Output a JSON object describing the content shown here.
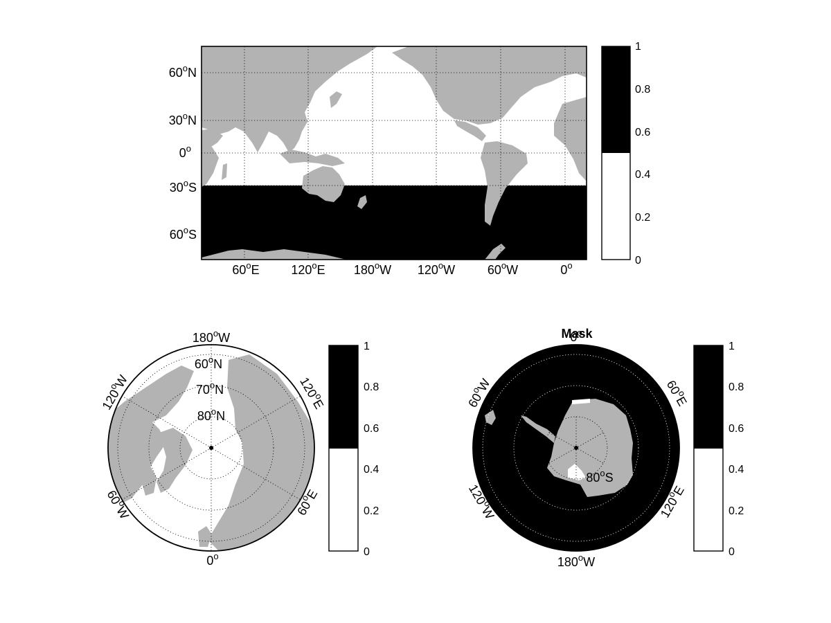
{
  "colors": {
    "land": "#b3b3b3",
    "mask_on": "#000000",
    "mask_off": "#ffffff",
    "axis": "#000000",
    "grid": "#000000"
  },
  "chart_data": [
    {
      "type": "heatmap",
      "panel": "map-global",
      "projection": "equirectangular",
      "lon_range": [
        15,
        195
      ],
      "lat_range": [
        -80,
        80
      ],
      "mask_rule": "1 where latitude < 30S, 0 elsewhere, land shown grey",
      "mask_threshold_lat": -30,
      "x_ticks": [
        {
          "value": 60,
          "deg": "60",
          "hem": "E"
        },
        {
          "value": 120,
          "deg": "120",
          "hem": "E"
        },
        {
          "value": 180,
          "deg": "180",
          "hem": "W"
        },
        {
          "value": 240,
          "deg": "120",
          "hem": "W"
        },
        {
          "value": 300,
          "deg": "60",
          "hem": "W"
        },
        {
          "value": 360,
          "deg": "0",
          "hem": ""
        }
      ],
      "y_ticks": [
        {
          "value": 60,
          "deg": "60",
          "hem": "N"
        },
        {
          "value": 30,
          "deg": "30",
          "hem": "N"
        },
        {
          "value": 0,
          "deg": "0",
          "hem": ""
        },
        {
          "value": -30,
          "deg": "30",
          "hem": "S"
        },
        {
          "value": -60,
          "deg": "60",
          "hem": "S"
        }
      ],
      "grid": "dotted",
      "colorbar": {
        "ticks": [
          "0",
          "0.2",
          "0.4",
          "0.6",
          "0.8",
          "1"
        ],
        "range": [
          0,
          1
        ],
        "split": 0.5,
        "location": "right"
      }
    },
    {
      "type": "heatmap",
      "panel": "map-arctic",
      "projection": "polar-north",
      "lat_range": [
        50,
        90
      ],
      "mask_rule": "0 everywhere (white), land shown grey",
      "lat_labels": [
        {
          "deg": "60",
          "hem": "N",
          "lat": 60
        },
        {
          "deg": "70",
          "hem": "N",
          "lat": 70
        },
        {
          "deg": "80",
          "hem": "N",
          "lat": 80
        }
      ],
      "lon_labels": [
        {
          "deg": "180",
          "hem": "W",
          "lon": 180
        },
        {
          "deg": "120",
          "hem": "E",
          "lon": 120
        },
        {
          "deg": "60",
          "hem": "E",
          "lon": 60
        },
        {
          "deg": "0",
          "hem": "",
          "lon": 0
        },
        {
          "deg": "60",
          "hem": "W",
          "lon": -60
        },
        {
          "deg": "120",
          "hem": "W",
          "lon": -120
        }
      ],
      "grid": "dotted",
      "colorbar": {
        "ticks": [
          "0",
          "0.2",
          "0.4",
          "0.6",
          "0.8",
          "1"
        ],
        "range": [
          0,
          1
        ],
        "split": 0.5,
        "location": "right"
      }
    },
    {
      "type": "heatmap",
      "panel": "map-antarctic",
      "projection": "polar-south",
      "title": "Mask",
      "lat_range": [
        -90,
        -50
      ],
      "mask_rule": "1 over ocean south of 30S (black), Antarctic land grey",
      "lat_labels": [
        {
          "deg": "80",
          "hem": "S",
          "lat": -80
        }
      ],
      "lon_labels": [
        {
          "deg": "0",
          "hem": "",
          "lon": 0
        },
        {
          "deg": "60",
          "hem": "E",
          "lon": 60
        },
        {
          "deg": "120",
          "hem": "E",
          "lon": 120
        },
        {
          "deg": "180",
          "hem": "W",
          "lon": 180
        },
        {
          "deg": "120",
          "hem": "W",
          "lon": -120
        },
        {
          "deg": "60",
          "hem": "W",
          "lon": -60
        }
      ],
      "grid": "dotted",
      "colorbar": {
        "ticks": [
          "0",
          "0.2",
          "0.4",
          "0.6",
          "0.8",
          "1"
        ],
        "range": [
          0,
          1
        ],
        "split": 0.5,
        "location": "right"
      }
    }
  ]
}
